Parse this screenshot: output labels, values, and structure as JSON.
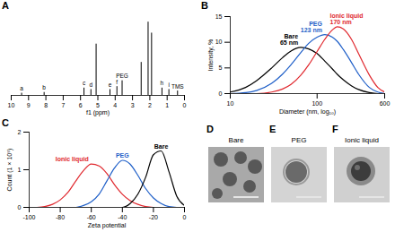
{
  "chart_data": [
    {
      "panel": "A",
      "type": "stem",
      "xlabel": "f1 (ppm)",
      "x": [
        9.4,
        8.1,
        5.8,
        5.4,
        5.1,
        4.3,
        3.9,
        3.6,
        2.5,
        2.1,
        1.9,
        1.3,
        0.9,
        0.4
      ],
      "values": [
        3,
        4,
        10,
        8,
        70,
        8,
        12,
        20,
        45,
        100,
        85,
        10,
        8,
        6
      ],
      "labels": [
        "a",
        "b",
        "c",
        "d",
        null,
        "e",
        "f",
        "PEG",
        null,
        null,
        null,
        "h",
        "i",
        "TMS"
      ],
      "xlim": [
        10,
        0
      ],
      "xticks": [
        10,
        9,
        8,
        7,
        6,
        5,
        4,
        3,
        2,
        1,
        0
      ],
      "ylim": [
        0,
        110
      ],
      "tick_labels": "x",
      "color": "#000000"
    },
    {
      "panel": "B",
      "type": "line",
      "xlabel": "Diameter (nm, log₁₀)",
      "ylabel": "Intensity, %",
      "log": "x",
      "x": [
        10,
        15,
        20,
        30,
        40,
        50,
        65,
        80,
        100,
        123,
        150,
        170,
        200,
        250,
        300,
        400,
        500,
        600
      ],
      "xlim": [
        10,
        600
      ],
      "xticks": [
        10,
        100,
        600
      ],
      "ylim": [
        0,
        15
      ],
      "yticks": [
        0,
        5,
        10,
        15
      ],
      "series": [
        {
          "name": "Bare",
          "label": "65 nm",
          "color": "#000000",
          "values": [
            0.3,
            1.2,
            2.5,
            5,
            7,
            8.3,
            9,
            8.7,
            7.8,
            6.3,
            4.8,
            3.8,
            2.7,
            1.5,
            0.8,
            0.2,
            0,
            0
          ]
        },
        {
          "name": "PEG",
          "label": "123 nm",
          "color": "#1f5fc8",
          "values": [
            0,
            0.2,
            0.6,
            2,
            3.8,
            5.6,
            8,
            9.8,
            11,
            11.5,
            11,
            10.2,
            8.6,
            6,
            3.8,
            1.2,
            0.3,
            0
          ]
        },
        {
          "name": "Ionic liquid",
          "label": "170 nm",
          "color": "#e0282e",
          "values": [
            0,
            0,
            0,
            0.3,
            0.9,
            1.8,
            3.6,
            5.6,
            8.2,
            10.6,
            12.4,
            13,
            12.6,
            10.5,
            7.8,
            3.6,
            1.2,
            0.3
          ]
        }
      ]
    },
    {
      "panel": "C",
      "type": "line",
      "xlabel": "Zeta potential",
      "ylabel": "Count (1 × 10⁵)",
      "x": [
        -95,
        -90,
        -85,
        -80,
        -75,
        -70,
        -65,
        -60,
        -55,
        -50,
        -45,
        -40,
        -35,
        -30,
        -25,
        -20,
        -15,
        -10,
        -5,
        0
      ],
      "xlim": [
        -100,
        0
      ],
      "xticks": [
        -100,
        -80,
        -60,
        -40,
        -20,
        0
      ],
      "ylim": [
        0,
        2
      ],
      "yticks": [
        0,
        1,
        2
      ],
      "series": [
        {
          "name": "Ionic liquid",
          "color": "#e0282e",
          "values": [
            0,
            0.02,
            0.08,
            0.2,
            0.4,
            0.7,
            0.98,
            1.15,
            1.1,
            0.9,
            0.6,
            0.35,
            0.18,
            0.08,
            0.02,
            0,
            0,
            0,
            0,
            0
          ]
        },
        {
          "name": "PEG",
          "color": "#1f5fc8",
          "values": [
            0,
            0,
            0,
            0,
            0,
            0,
            0.05,
            0.15,
            0.35,
            0.7,
            1.05,
            1.25,
            1.15,
            0.85,
            0.5,
            0.25,
            0.1,
            0.02,
            0,
            0
          ]
        },
        {
          "name": "Bare",
          "color": "#000000",
          "values": [
            0,
            0,
            0,
            0,
            0,
            0,
            0,
            0,
            0,
            0,
            0,
            0,
            0.1,
            0.35,
            0.8,
            1.4,
            1.5,
            0.95,
            0.3,
            0.05
          ]
        }
      ]
    }
  ],
  "images": [
    {
      "panel": "D",
      "title": "Bare"
    },
    {
      "panel": "E",
      "title": "PEG"
    },
    {
      "panel": "F",
      "title": "Ionic liquid"
    }
  ]
}
